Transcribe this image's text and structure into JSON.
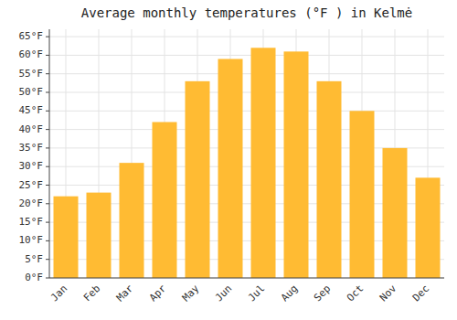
{
  "chart_data": {
    "type": "bar",
    "title": "Average monthly temperatures (°F ) in Kelmė",
    "categories": [
      "Jan",
      "Feb",
      "Mar",
      "Apr",
      "May",
      "Jun",
      "Jul",
      "Aug",
      "Sep",
      "Oct",
      "Nov",
      "Dec"
    ],
    "values": [
      22,
      23,
      31,
      42,
      53,
      59,
      62,
      61,
      53,
      45,
      35,
      27
    ],
    "color": "#FFBB33",
    "ylim": [
      0,
      67
    ],
    "yticks": [
      {
        "value": 0,
        "label": "0°F"
      },
      {
        "value": 5,
        "label": "5°F"
      },
      {
        "value": 10,
        "label": "10°F"
      },
      {
        "value": 15,
        "label": "15°F"
      },
      {
        "value": 20,
        "label": "20°F"
      },
      {
        "value": 25,
        "label": "25°F"
      },
      {
        "value": 30,
        "label": "30°F"
      },
      {
        "value": 35,
        "label": "35°F"
      },
      {
        "value": 40,
        "label": "40°F"
      },
      {
        "value": 45,
        "label": "45°F"
      },
      {
        "value": 50,
        "label": "50°F"
      },
      {
        "value": 55,
        "label": "55°F"
      },
      {
        "value": 60,
        "label": "60°F"
      },
      {
        "value": 65,
        "label": "65°F"
      }
    ],
    "grid": true
  }
}
